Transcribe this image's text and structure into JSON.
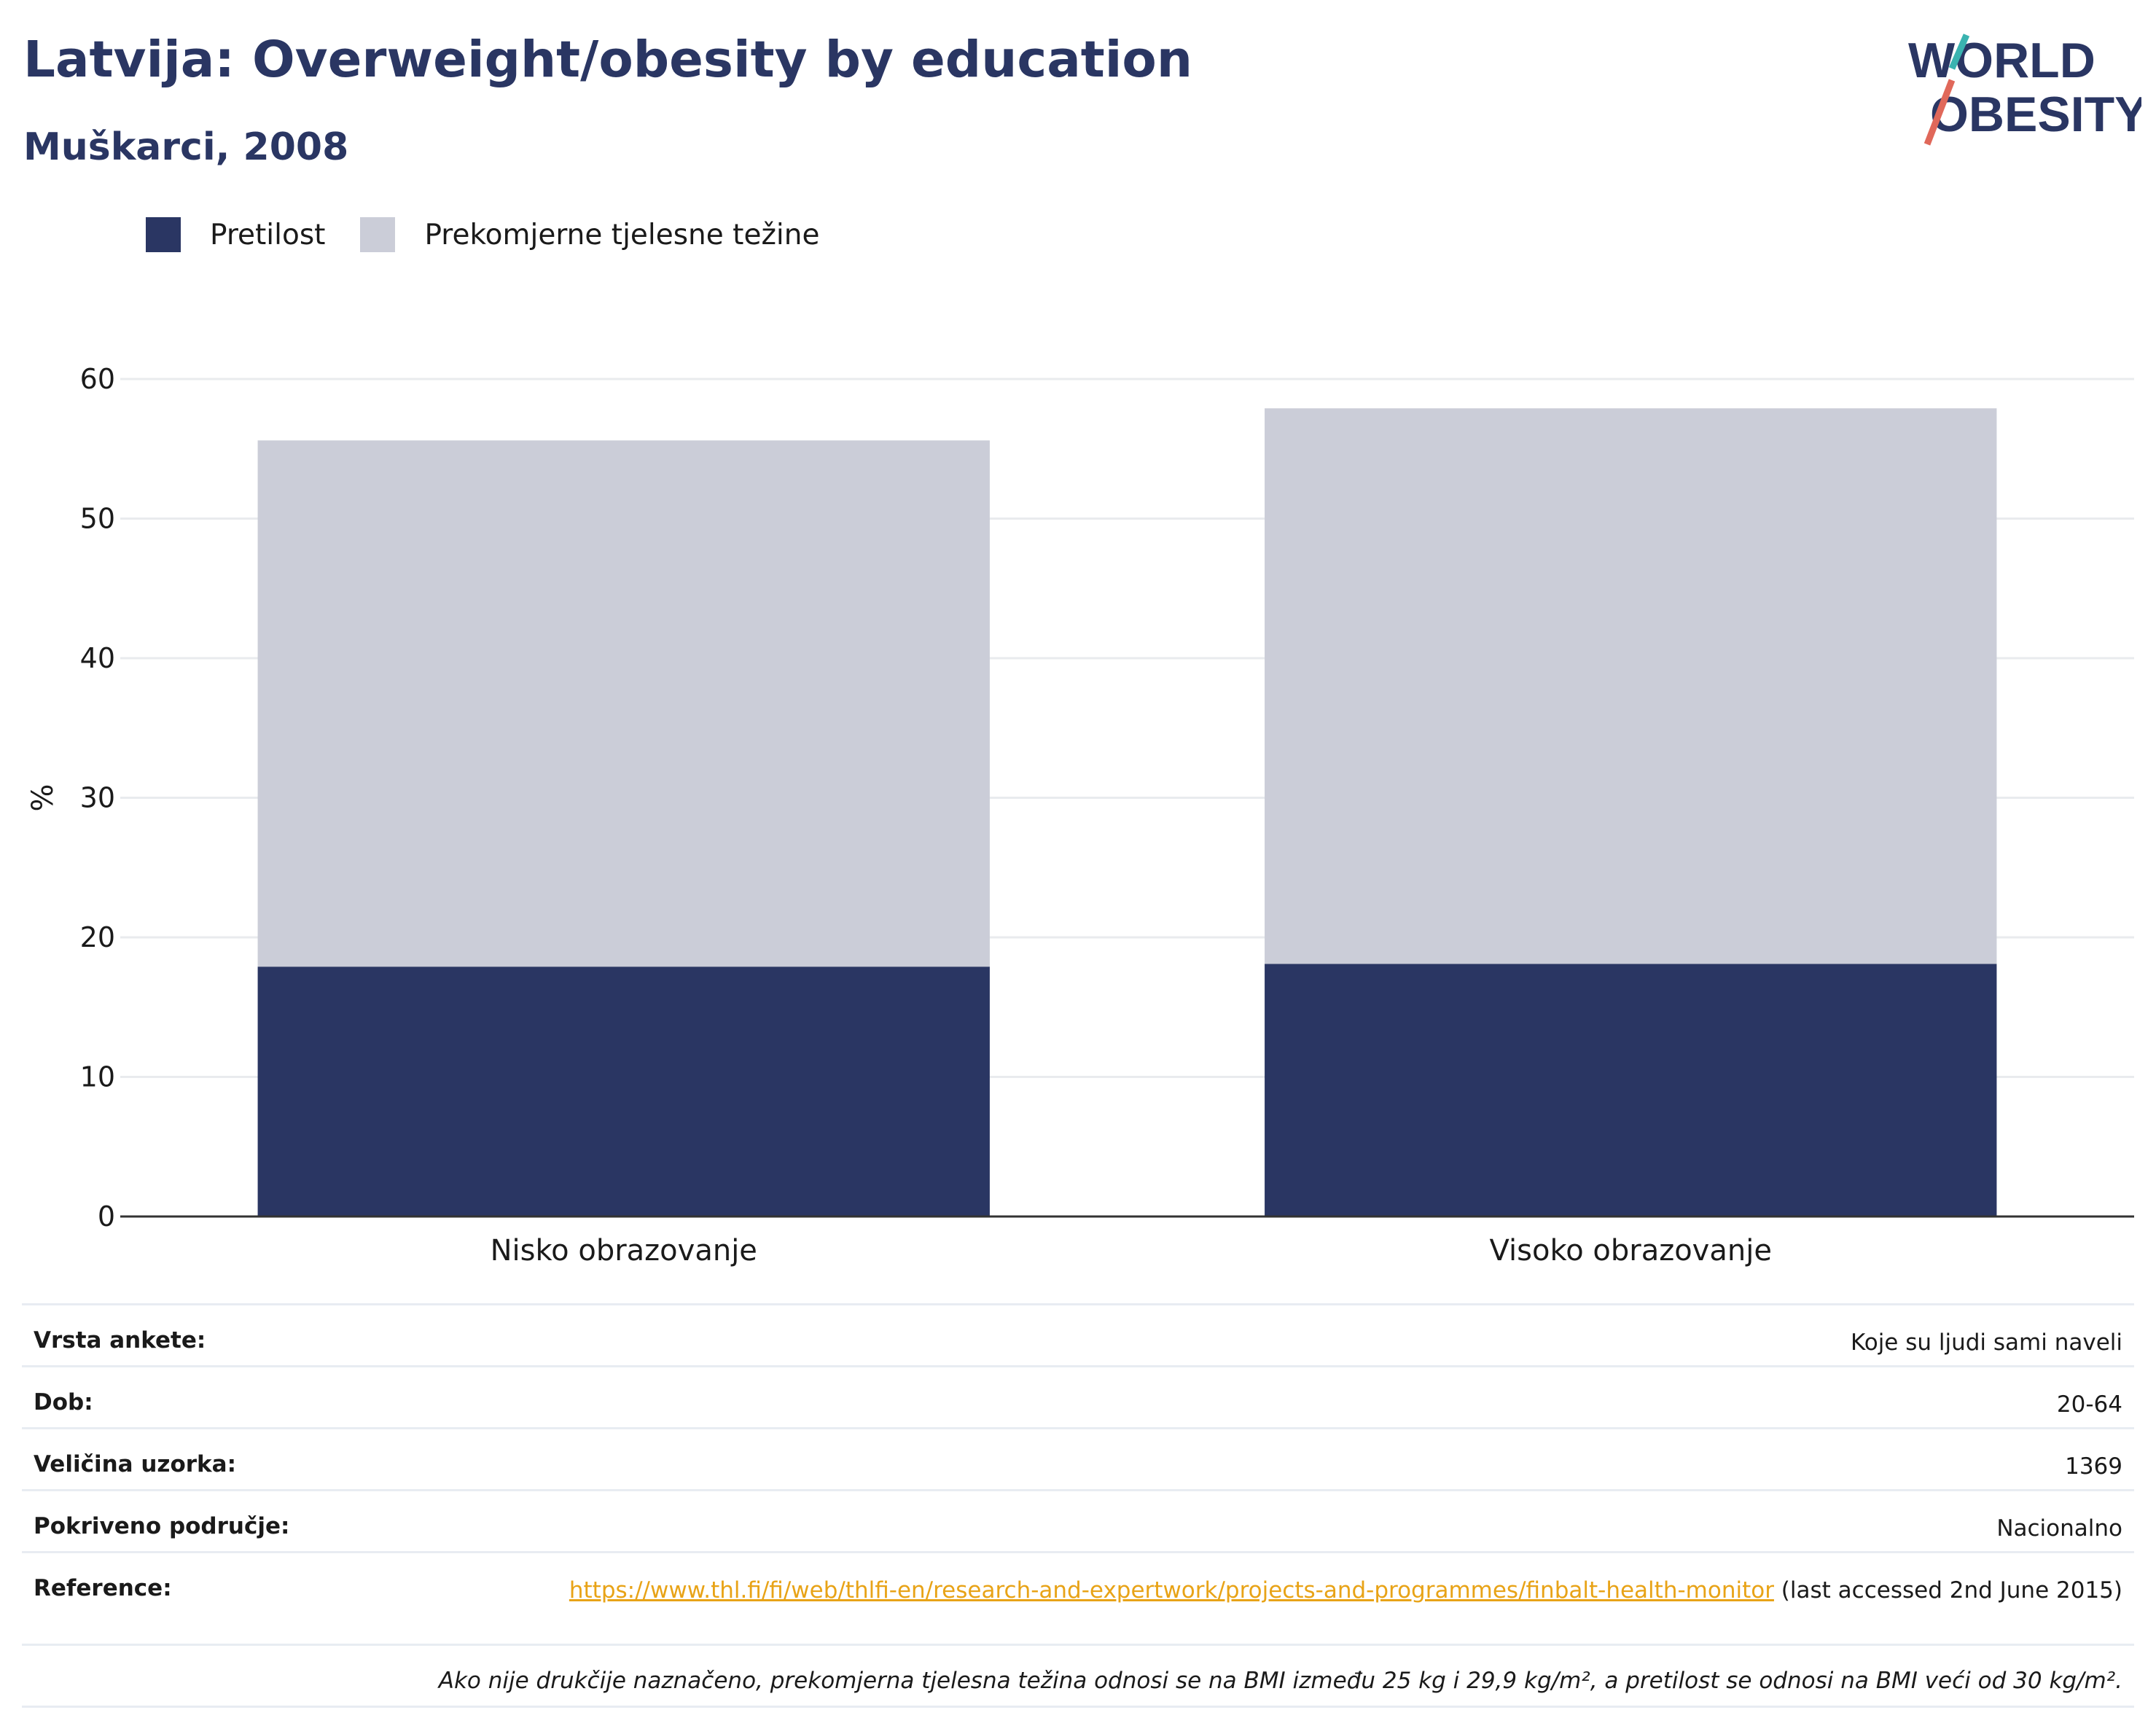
{
  "header": {
    "title": "Latvija: Overweight/obesity by education",
    "subtitle": "Muškarci, 2008"
  },
  "logo": {
    "line1": "WORLD",
    "line2": "OBESITY"
  },
  "colors": {
    "obesity": "#2a3663",
    "overweight": "#cbcdd8",
    "axis": "#333333",
    "grid": "#e9ebee",
    "link": "#e8a317"
  },
  "chart_data": {
    "type": "bar",
    "stacked": true,
    "title": "",
    "xlabel": "",
    "ylabel": "%",
    "ylim": [
      0,
      60
    ],
    "yticks": [
      0,
      10,
      20,
      30,
      40,
      50,
      60
    ],
    "grid": true,
    "legend_position": "top-left",
    "categories": [
      "Nisko obrazovanje",
      "Visoko obrazovanje"
    ],
    "series": [
      {
        "name": "Pretilost",
        "color": "#2a3663",
        "values": [
          17.9,
          18.1
        ]
      },
      {
        "name": "Prekomjerne tjelesne težine",
        "color": "#cbcdd8",
        "values": [
          37.7,
          39.8
        ]
      }
    ]
  },
  "info": {
    "survey_type_label": "Vrsta ankete:",
    "survey_type_value": "Koje su ljudi sami naveli",
    "age_label": "Dob:",
    "age_value": "20-64",
    "sample_label": "Veličina uzorka:",
    "sample_value": "1369",
    "area_label": "Pokriveno područje:",
    "area_value": "Nacionalno",
    "reference_label": "Reference:",
    "reference_url": "https://www.thl.fi/fi/web/thlfi-en/research-and-expertwork/projects-and-programmes/finbalt-health-monitor",
    "reference_note": " (last accessed 2nd June 2015)",
    "footnote": "Ako nije drukčije naznačeno, prekomjerna tjelesna težina odnosi se na BMI između 25 kg i 29,9 kg/m², a pretilost se odnosi na BMI veći od 30 kg/m²."
  }
}
